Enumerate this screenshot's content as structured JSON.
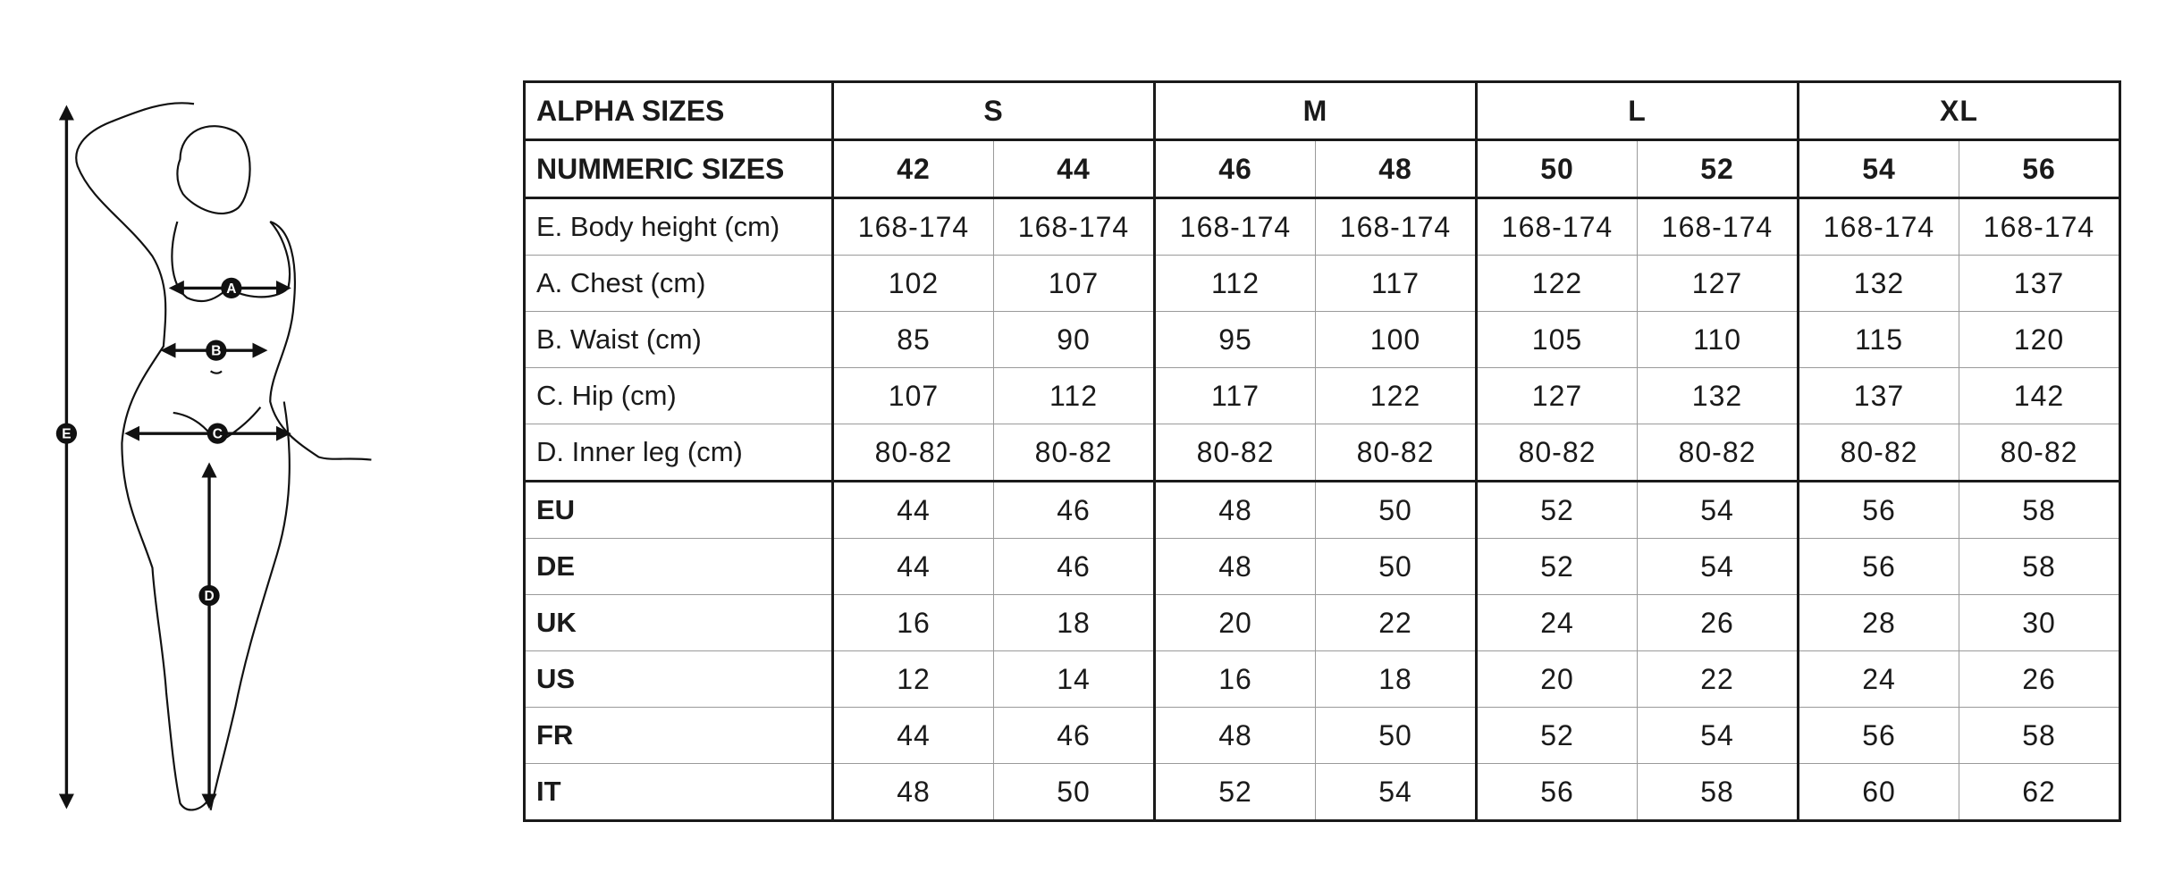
{
  "figure": {
    "markers": [
      "A",
      "B",
      "C",
      "D",
      "E"
    ]
  },
  "table": {
    "alpha_label": "ALPHA SIZES",
    "alpha_sizes": [
      "S",
      "M",
      "L",
      "XL"
    ],
    "numeric_label": "NUMMERIC SIZES",
    "numeric_sizes": [
      "42",
      "44",
      "46",
      "48",
      "50",
      "52",
      "54",
      "56"
    ],
    "measurements": [
      {
        "label": "E. Body height (cm)",
        "values": [
          "168-174",
          "168-174",
          "168-174",
          "168-174",
          "168-174",
          "168-174",
          "168-174",
          "168-174"
        ]
      },
      {
        "label": "A. Chest (cm)",
        "values": [
          "102",
          "107",
          "112",
          "117",
          "122",
          "127",
          "132",
          "137"
        ]
      },
      {
        "label": "B. Waist  (cm)",
        "values": [
          "85",
          "90",
          "95",
          "100",
          "105",
          "110",
          "115",
          "120"
        ]
      },
      {
        "label": "C. Hip (cm)",
        "values": [
          "107",
          "112",
          "117",
          "122",
          "127",
          "132",
          "137",
          "142"
        ]
      },
      {
        "label": "D. Inner leg (cm)",
        "values": [
          "80-82",
          "80-82",
          "80-82",
          "80-82",
          "80-82",
          "80-82",
          "80-82",
          "80-82"
        ]
      }
    ],
    "conversions": [
      {
        "label": "EU",
        "values": [
          "44",
          "46",
          "48",
          "50",
          "52",
          "54",
          "56",
          "58"
        ]
      },
      {
        "label": "DE",
        "values": [
          "44",
          "46",
          "48",
          "50",
          "52",
          "54",
          "56",
          "58"
        ]
      },
      {
        "label": "UK",
        "values": [
          "16",
          "18",
          "20",
          "22",
          "24",
          "26",
          "28",
          "30"
        ]
      },
      {
        "label": "US",
        "values": [
          "12",
          "14",
          "16",
          "18",
          "20",
          "22",
          "24",
          "26"
        ]
      },
      {
        "label": "FR",
        "values": [
          "44",
          "46",
          "48",
          "50",
          "52",
          "54",
          "56",
          "58"
        ]
      },
      {
        "label": "IT",
        "values": [
          "48",
          "50",
          "52",
          "54",
          "56",
          "58",
          "60",
          "62"
        ]
      }
    ]
  }
}
